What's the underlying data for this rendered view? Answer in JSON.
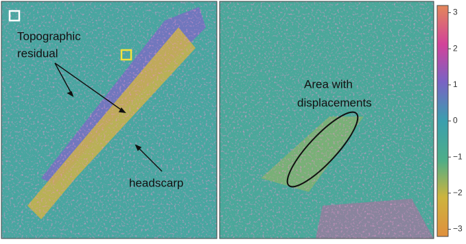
{
  "chart_data": {
    "type": "raster",
    "panels": [
      {
        "annotations": [
          "Topographic",
          "residual",
          "headscarp"
        ]
      },
      {
        "annotations": [
          "Area with",
          "displacements"
        ]
      }
    ],
    "colorbar": {
      "clim": [
        -3.2,
        3.2
      ],
      "ticks": [
        3,
        2,
        1,
        0,
        {
          "value": -1,
          "label": "−1"
        },
        {
          "value": -2,
          "label": "−2"
        },
        {
          "value": -3,
          "label": "−3"
        }
      ]
    }
  }
}
